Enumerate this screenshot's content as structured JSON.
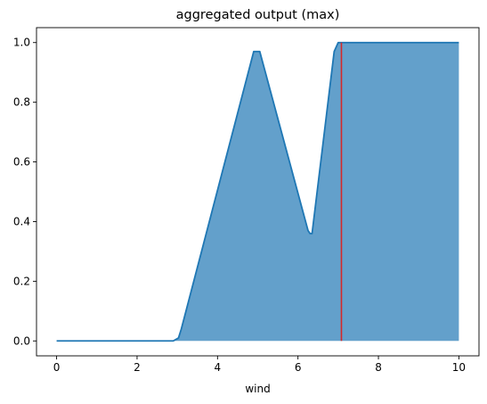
{
  "chart_data": {
    "type": "area",
    "title": "aggregated output (max)",
    "xlabel": "wind",
    "ylabel": "",
    "xlim": [
      -0.5,
      10.5
    ],
    "ylim": [
      -0.05,
      1.05
    ],
    "xticks": [
      "0",
      "2",
      "4",
      "6",
      "8",
      "10"
    ],
    "yticks": [
      "0.0",
      "0.2",
      "0.4",
      "0.6",
      "0.8",
      "1.0"
    ],
    "grid": false,
    "series": [
      {
        "x": [
          0,
          2.9,
          3.03,
          3.1,
          4.9,
          5.0,
          5.05,
          6.25,
          6.3,
          6.35,
          6.9,
          7.0,
          7.05,
          10
        ],
        "y": [
          0,
          0,
          0.01,
          0.04,
          0.97,
          0.97,
          0.97,
          0.37,
          0.36,
          0.36,
          0.97,
          1.0,
          1.0,
          1.0
        ]
      }
    ],
    "marker_line": {
      "x": 7.08,
      "y": [
        0,
        1.0
      ]
    },
    "colors": {
      "line": "#1f77b4",
      "fill": "#63a0cb",
      "marker": "#d62728",
      "axes": "#000000"
    }
  }
}
